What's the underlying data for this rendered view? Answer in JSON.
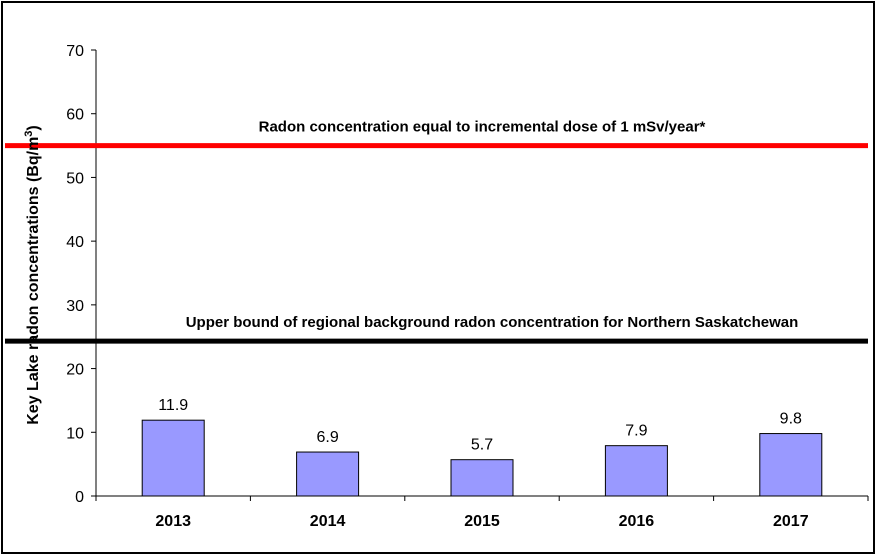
{
  "chart_data": {
    "type": "bar",
    "categories": [
      "2013",
      "2014",
      "2015",
      "2016",
      "2017"
    ],
    "values": [
      11.9,
      6.9,
      5.7,
      7.9,
      9.8
    ],
    "data_labels": [
      "11.9",
      "6.9",
      "5.7",
      "7.9",
      "9.8"
    ],
    "ylabel": "Key Lake radon concentrations (Bq/m",
    "ylabel_superscript": "3",
    "ylabel_suffix": ")",
    "ylim": [
      0,
      70
    ],
    "yticks": [
      0,
      10,
      20,
      30,
      40,
      50,
      60,
      70
    ],
    "grid": false,
    "bar_color": "#9999ff",
    "reference_lines": [
      {
        "value": 55,
        "label": "Radon concentration equal to incremental dose of 1 mSv/year*",
        "color": "#ff0000"
      },
      {
        "value": 24.3,
        "label": "Upper bound of regional background radon concentration for Northern Saskatchewan",
        "color": "#000000"
      }
    ]
  }
}
